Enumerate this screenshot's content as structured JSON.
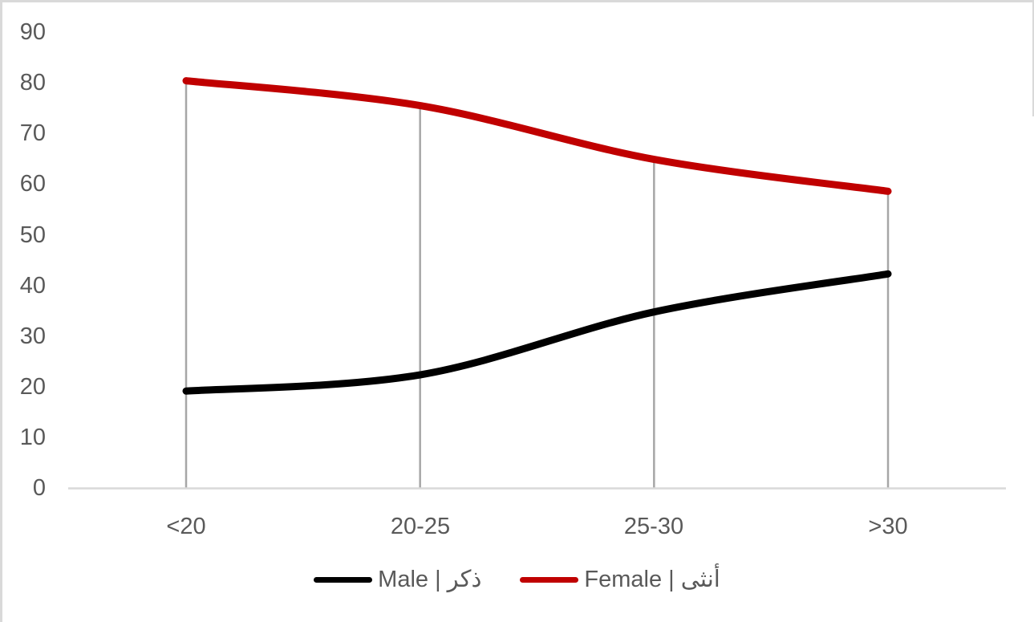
{
  "chart_data": {
    "type": "line",
    "title": "",
    "xlabel": "",
    "ylabel": "",
    "categories": [
      "<20",
      "20-25",
      "25-30",
      ">30"
    ],
    "series": [
      {
        "name": "Male | ذكر",
        "values": [
          19.2,
          22.4,
          34.8,
          42.3
        ],
        "color": "#000000"
      },
      {
        "name": "Female | أنثى",
        "values": [
          80.4,
          75.5,
          64.9,
          58.6
        ],
        "color": "#C00000"
      }
    ],
    "ylim": [
      0,
      90
    ],
    "ytick_step": 10,
    "ytick_labels": [
      "90",
      "80",
      "70",
      "60",
      "50",
      "40",
      "30",
      "20",
      "10",
      "0"
    ],
    "grid": "no horizontal gridlines; vertical drop lines from top series to axis at each category",
    "legend_position": "bottom",
    "line_style": "smoothed",
    "colors": {
      "axis_line": "#D9D9D9",
      "drop_line": "#A6A6A6",
      "tick_text": "#595959",
      "male_line": "#000000",
      "female_line": "#C00000"
    }
  }
}
